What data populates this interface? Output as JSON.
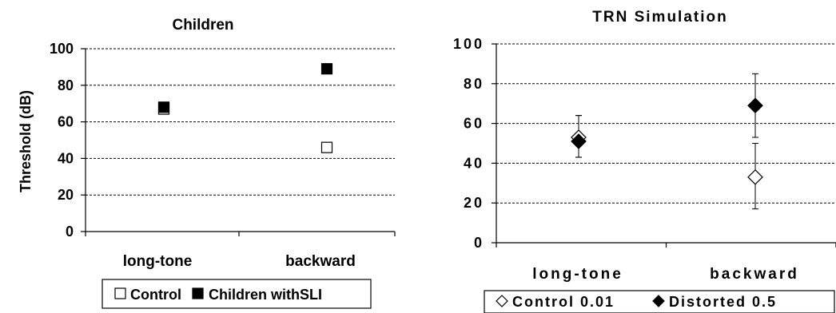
{
  "chart_data": [
    {
      "type": "scatter",
      "title": "Children",
      "xlabel": "",
      "ylabel": "Threshold (dB)",
      "ylim": [
        0,
        100
      ],
      "yticks": [
        0,
        20,
        40,
        60,
        80,
        100
      ],
      "categories": [
        "long-tone",
        "backward"
      ],
      "grid": true,
      "legend_position": "bottom",
      "series": [
        {
          "name": "Control",
          "marker": "open-square",
          "values": [
            67,
            46
          ]
        },
        {
          "name": "Children withSLI",
          "marker": "filled-square",
          "values": [
            68,
            89
          ]
        }
      ]
    },
    {
      "type": "scatter",
      "title": "TRN Simulation",
      "xlabel": "",
      "ylabel": "",
      "ylim": [
        0,
        100
      ],
      "yticks": [
        0,
        20,
        40,
        60,
        80,
        100
      ],
      "categories": [
        "long-tone",
        "backward"
      ],
      "grid": true,
      "legend_position": "bottom",
      "series": [
        {
          "name": "Control 0.01",
          "marker": "open-diamond",
          "values": [
            53,
            33
          ],
          "error_low": [
            43,
            17
          ],
          "error_high": [
            64,
            50
          ]
        },
        {
          "name": "Distorted 0.5",
          "marker": "filled-diamond",
          "values": [
            51,
            69
          ],
          "error_low": [
            43,
            53
          ],
          "error_high": [
            64,
            85
          ]
        }
      ]
    }
  ]
}
